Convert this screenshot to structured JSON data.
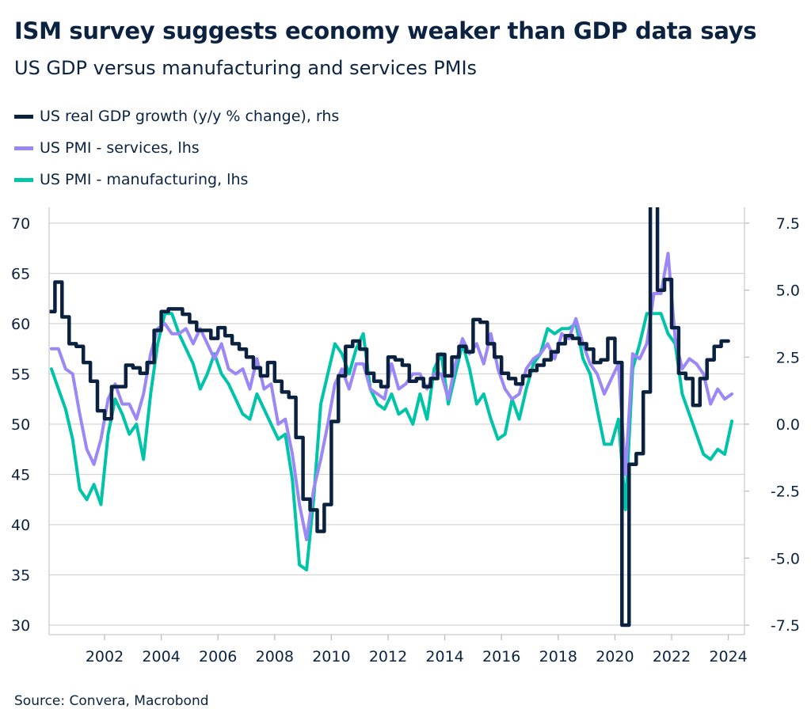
{
  "chart_data": {
    "type": "line",
    "title": "ISM survey suggests economy weaker than GDP data says",
    "subtitle": "US GDP versus manufacturing and services PMIs",
    "source": "Source: Convera, Macrobond",
    "legend_placement": "top-left",
    "grid": true,
    "colors": {
      "gdp": "#0a2240",
      "services": "#9b87f5",
      "manufacturing": "#00c4a7"
    },
    "x_ticks": [
      "2002",
      "2004",
      "2006",
      "2008",
      "2010",
      "2012",
      "2014",
      "2016",
      "2018",
      "2020",
      "2022",
      "2024"
    ],
    "y_left": {
      "range": [
        30,
        70
      ],
      "ticks": [
        "30",
        "35",
        "40",
        "45",
        "50",
        "55",
        "60",
        "65",
        "70"
      ]
    },
    "y_right": {
      "range": [
        -7.5,
        7.5
      ],
      "ticks": [
        "-7.5",
        "-5.0",
        "-2.5",
        "0.0",
        "2.5",
        "5.0",
        "7.5"
      ]
    },
    "series": [
      {
        "name": "US real GDP growth (y/y % change), rhs",
        "axis": "right",
        "key": "gdp",
        "start": "2000Q1",
        "frequency": "quarterly",
        "values": [
          4.2,
          5.3,
          4.0,
          3.0,
          2.9,
          2.3,
          1.6,
          0.5,
          0.2,
          1.4,
          1.4,
          2.2,
          2.1,
          1.9,
          2.3,
          3.5,
          4.2,
          4.3,
          4.3,
          4.1,
          3.8,
          3.5,
          3.5,
          3.2,
          3.6,
          3.3,
          3.0,
          2.8,
          2.5,
          2.1,
          1.8,
          2.3,
          1.6,
          1.2,
          1.0,
          -0.5,
          -2.8,
          -3.2,
          -4.0,
          -3.0,
          0.1,
          1.8,
          2.9,
          3.1,
          2.8,
          1.9,
          1.6,
          1.4,
          2.5,
          2.4,
          2.2,
          1.6,
          1.7,
          1.4,
          1.7,
          2.6,
          1.8,
          2.5,
          2.9,
          2.7,
          3.9,
          3.8,
          3.0,
          2.5,
          1.9,
          1.7,
          1.5,
          1.8,
          2.0,
          2.2,
          2.4,
          2.7,
          3.0,
          3.3,
          3.2,
          3.0,
          2.8,
          2.3,
          2.4,
          3.2,
          2.3,
          -7.5,
          -1.5,
          -1.1,
          1.2,
          12.5,
          5.0,
          5.4,
          3.6,
          1.9,
          1.7,
          0.7,
          1.7,
          2.4,
          2.9,
          3.1
        ]
      },
      {
        "name": "US PMI - services, lhs",
        "axis": "left",
        "key": "services",
        "start": "2000Q1",
        "frequency": "quarterly",
        "values": [
          57.5,
          57.5,
          55.5,
          55,
          51,
          47.5,
          46,
          48.5,
          52.5,
          54,
          52,
          52,
          50.5,
          53,
          57,
          59.5,
          60,
          59,
          59,
          59.5,
          58,
          59.5,
          58,
          56.5,
          58,
          55.5,
          55,
          55.5,
          53.5,
          56.5,
          53.5,
          54,
          50,
          50.5,
          47,
          42,
          38.5,
          43.5,
          46.5,
          50,
          54,
          55.5,
          53.5,
          56,
          56,
          53.5,
          53,
          52.5,
          56,
          53.5,
          54,
          55,
          55,
          53.5,
          55,
          55,
          52.5,
          56,
          58.5,
          57,
          58,
          56,
          59,
          55.5,
          53.5,
          52.5,
          53,
          55.5,
          56.5,
          57,
          58,
          56.5,
          59,
          58.5,
          60.5,
          58,
          56,
          55,
          53,
          54.5,
          56,
          45,
          57,
          56.5,
          58,
          63,
          63,
          67,
          58.5,
          55.5,
          56.5,
          56,
          55,
          52,
          53.5,
          52.5,
          53
        ]
      },
      {
        "name": "US PMI - manufacturing, lhs",
        "axis": "left",
        "key": "manufacturing",
        "start": "2000Q1",
        "frequency": "quarterly",
        "values": [
          55.5,
          53.5,
          51.5,
          48.5,
          43.5,
          42.5,
          44,
          42,
          49,
          52.5,
          51,
          49,
          50,
          46.5,
          53,
          58,
          61,
          61,
          59,
          57.5,
          56,
          53.5,
          55,
          57,
          55,
          54,
          52.5,
          51,
          50.5,
          53,
          51.5,
          50,
          48.5,
          49,
          44.5,
          36,
          35.5,
          42.5,
          52,
          55,
          58,
          57,
          55,
          57.5,
          59,
          53.5,
          52,
          51.5,
          53,
          51,
          51.5,
          50,
          53,
          50.5,
          55.5,
          57,
          52,
          55,
          58,
          55.5,
          52,
          53,
          50.5,
          48.5,
          49,
          52.5,
          50.5,
          53.5,
          56,
          57,
          59.5,
          59,
          59.5,
          59.5,
          60,
          56.5,
          55,
          51.5,
          48,
          48,
          50.5,
          41.5,
          55.5,
          58,
          61,
          61,
          61,
          59,
          58,
          53,
          51,
          49,
          47,
          46.5,
          47.5,
          47,
          50.3
        ]
      }
    ]
  }
}
